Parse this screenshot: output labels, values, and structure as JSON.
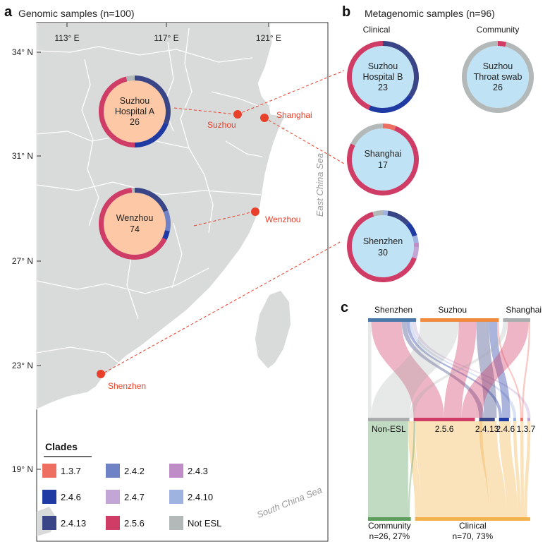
{
  "panel_a": {
    "letter": "a",
    "title": "Genomic samples (n=100)",
    "lon_ticks": [
      "113° E",
      "117° E",
      "121° E"
    ],
    "lat_ticks": [
      "34° N",
      "31° N",
      "27° N",
      "23° N",
      "19° N"
    ],
    "sea_east": "East China Sea",
    "sea_south": "South China Sea",
    "cities": [
      {
        "name": "Suzhou"
      },
      {
        "name": "Shanghai"
      },
      {
        "name": "Wenzhou"
      },
      {
        "name": "Shenzhen"
      }
    ],
    "donuts": [
      {
        "line1": "Suzhou",
        "line2": "Hospital A",
        "count": "26",
        "segments": [
          {
            "clade": "2.4.13",
            "value": 8
          },
          {
            "clade": "2.4.6",
            "value": 5
          },
          {
            "clade": "2.5.6",
            "value": 12
          },
          {
            "clade": "Not ESL",
            "value": 1
          }
        ]
      },
      {
        "line1": "Wenzhou",
        "line2": "",
        "count": "74",
        "segments": [
          {
            "clade": "2.4.13",
            "value": 14
          },
          {
            "clade": "2.4.2",
            "value": 7
          },
          {
            "clade": "2.4.6",
            "value": 3
          },
          {
            "clade": "2.5.6",
            "value": 49
          },
          {
            "clade": "Not ESL",
            "value": 1
          }
        ]
      }
    ]
  },
  "panel_b": {
    "letter": "b",
    "title": "Metagenomic samples (n=96)",
    "col_clinical": "Clinical",
    "col_community": "Community",
    "donuts": [
      {
        "line1": "Suzhou",
        "line2": "Hospital B",
        "count": "23",
        "segments": [
          {
            "clade": "2.4.13",
            "value": 8
          },
          {
            "clade": "2.4.6",
            "value": 5
          },
          {
            "clade": "2.5.6",
            "value": 10
          }
        ]
      },
      {
        "line1": "Suzhou",
        "line2": "Throat swab",
        "count": "26",
        "segments": [
          {
            "clade": "2.5.6",
            "value": 1
          },
          {
            "clade": "Not ESL",
            "value": 25
          }
        ]
      },
      {
        "line1": "Shanghai",
        "line2": "",
        "count": "17",
        "segments": [
          {
            "clade": "1.3.7",
            "value": 1
          },
          {
            "clade": "2.5.6",
            "value": 13
          },
          {
            "clade": "Not ESL",
            "value": 3
          }
        ]
      },
      {
        "line1": "Shenzhen",
        "line2": "",
        "count": "30",
        "segments": [
          {
            "clade": "2.4.10",
            "value": 0.7
          },
          {
            "clade": "2.4.13",
            "value": 3.3
          },
          {
            "clade": "2.4.6",
            "value": 2
          },
          {
            "clade": "2.4.10",
            "value": 1
          },
          {
            "clade": "2.4.3",
            "value": 0.6
          },
          {
            "clade": "2.4.7",
            "value": 1.6
          },
          {
            "clade": "2.5.6",
            "value": 19.4
          },
          {
            "clade": "Not ESL",
            "value": 1.4
          }
        ]
      }
    ]
  },
  "panel_c": {
    "letter": "c",
    "top_nodes": [
      {
        "label": "Shenzhen",
        "value": 30,
        "color": "#4a78a8"
      },
      {
        "label": "Suzhou",
        "value": 49,
        "color": "#f08a3e"
      },
      {
        "label": "Shanghai",
        "value": 17,
        "color": "#a9adad"
      }
    ],
    "mid_nodes": [
      {
        "label": "Non-ESL",
        "value": 29,
        "color": "#a9adad"
      },
      {
        "label": "2.5.6",
        "value": 43,
        "color": "#cf3d66"
      },
      {
        "label": "2.4.13",
        "value": 11,
        "color": "#3a4587"
      },
      {
        "label": "2.4.6",
        "value": 7,
        "color": "#1f3aa3"
      },
      {
        "label": "",
        "value": 2,
        "color": "#9fb3e0"
      },
      {
        "label": "1.3.7",
        "value": 2,
        "color": "#ee6e62"
      },
      {
        "label": "",
        "value": 2,
        "color": "#c3a6d6"
      }
    ],
    "bottom_nodes": [
      {
        "label": "Community",
        "sub": "n=26, 27%",
        "value": 26,
        "color": "#5d9e5f"
      },
      {
        "label": "Clinical",
        "sub": "n=70, 73%",
        "value": 70,
        "color": "#f2b24d"
      }
    ],
    "top_flows": [
      {
        "from": 0,
        "to": 0,
        "value": 2
      },
      {
        "from": 0,
        "to": 1,
        "value": 19
      },
      {
        "from": 0,
        "to": 2,
        "value": 3
      },
      {
        "from": 0,
        "to": 3,
        "value": 2
      },
      {
        "from": 0,
        "to": 4,
        "value": 2
      },
      {
        "from": 0,
        "to": 6,
        "value": 2
      },
      {
        "from": 1,
        "to": 0,
        "value": 24
      },
      {
        "from": 1,
        "to": 1,
        "value": 11
      },
      {
        "from": 1,
        "to": 2,
        "value": 8
      },
      {
        "from": 1,
        "to": 3,
        "value": 5
      },
      {
        "from": 1,
        "to": 5,
        "value": 1
      },
      {
        "from": 2,
        "to": 0,
        "value": 3
      },
      {
        "from": 2,
        "to": 1,
        "value": 13
      },
      {
        "from": 2,
        "to": 5,
        "value": 1
      }
    ],
    "bottom_flows": [
      {
        "from": 0,
        "to": 0,
        "value": 25
      },
      {
        "from": 0,
        "to": 1,
        "value": 4
      },
      {
        "from": 1,
        "to": 0,
        "value": 1
      },
      {
        "from": 1,
        "to": 1,
        "value": 42
      },
      {
        "from": 2,
        "to": 1,
        "value": 11
      },
      {
        "from": 3,
        "to": 1,
        "value": 7
      },
      {
        "from": 4,
        "to": 1,
        "value": 2
      },
      {
        "from": 5,
        "to": 1,
        "value": 2
      },
      {
        "from": 6,
        "to": 1,
        "value": 2
      }
    ]
  },
  "legend": {
    "title": "Clades",
    "items": [
      {
        "label": "1.3.7",
        "color": "#ee6e62"
      },
      {
        "label": "2.4.2",
        "color": "#6f82c5"
      },
      {
        "label": "2.4.3",
        "color": "#c08cc8"
      },
      {
        "label": "2.4.6",
        "color": "#1f3aa3"
      },
      {
        "label": "2.4.7",
        "color": "#c3a6d6"
      },
      {
        "label": "2.4.10",
        "color": "#9fb3e0"
      },
      {
        "label": "2.4.13",
        "color": "#3a4587"
      },
      {
        "label": "2.5.6",
        "color": "#cf3d66"
      },
      {
        "label": "Not ESL",
        "color": "#b3b9b9"
      }
    ]
  }
}
